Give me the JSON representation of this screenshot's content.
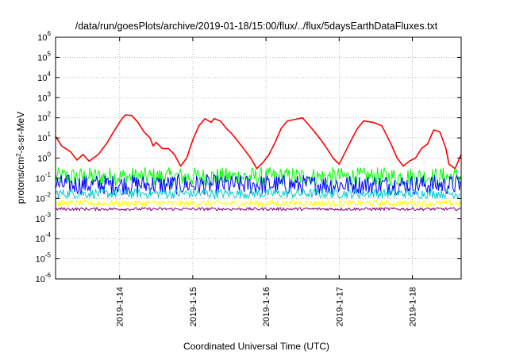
{
  "chart_data": {
    "type": "line",
    "title": "/data/run/goesPlots/archive/2019-01-18/15:00/flux/../flux/5daysEarthDataFluxes.txt",
    "xlabel": "Coordinated Universal Time (UTC)",
    "ylabel": {
      "prefix": "protons/cm",
      "sup": "2",
      "suffix": "-s-sr-MeV"
    },
    "yscale": "log",
    "ylim": [
      1e-06,
      1000000.0
    ],
    "y_ticks": [
      {
        "value": 1e-06,
        "base": "10",
        "exp": "-6"
      },
      {
        "value": 1e-05,
        "base": "10",
        "exp": "-5"
      },
      {
        "value": 0.0001,
        "base": "10",
        "exp": "-4"
      },
      {
        "value": 0.001,
        "base": "10",
        "exp": "-3"
      },
      {
        "value": 0.01,
        "base": "10",
        "exp": "-2"
      },
      {
        "value": 0.1,
        "base": "10",
        "exp": "-1"
      },
      {
        "value": 1.0,
        "base": "10",
        "exp": "0"
      },
      {
        "value": 10.0,
        "base": "10",
        "exp": "1"
      },
      {
        "value": 100.0,
        "base": "10",
        "exp": "2"
      },
      {
        "value": 1000.0,
        "base": "10",
        "exp": "3"
      },
      {
        "value": 10000.0,
        "base": "10",
        "exp": "4"
      },
      {
        "value": 100000.0,
        "base": "10",
        "exp": "5"
      },
      {
        "value": 1000000.0,
        "base": "10",
        "exp": "6"
      }
    ],
    "xlim": [
      "2019-01-13 03:00",
      "2019-01-18 16:00"
    ],
    "x_ticks": [
      "2019-1-14",
      "2019-1-15",
      "2019-1-16",
      "2019-1-17",
      "2019-1-18"
    ],
    "grid": true,
    "series": [
      {
        "color": "#ff0000",
        "x": [
          "2019-01-13 03:00",
          "2019-01-13 05:00",
          "2019-01-13 08:00",
          "2019-01-13 10:00",
          "2019-01-13 12:00",
          "2019-01-13 14:00",
          "2019-01-13 17:00",
          "2019-01-13 20:00",
          "2019-01-13 22:00",
          "2019-01-14 00:00",
          "2019-01-14 01:00",
          "2019-01-14 02:00",
          "2019-01-14 04:00",
          "2019-01-14 06:00",
          "2019-01-14 08:00",
          "2019-01-14 10:00",
          "2019-01-14 11:00",
          "2019-01-14 12:00",
          "2019-01-14 14:00",
          "2019-01-14 16:00",
          "2019-01-14 18:00",
          "2019-01-14 20:00",
          "2019-01-14 22:00",
          "2019-01-15 00:00",
          "2019-01-15 02:00",
          "2019-01-15 04:00",
          "2019-01-15 06:00",
          "2019-01-15 07:00",
          "2019-01-15 09:00",
          "2019-01-15 11:00",
          "2019-01-15 13:00",
          "2019-01-15 16:00",
          "2019-01-15 19:00",
          "2019-01-15 21:00",
          "2019-01-15 23:00",
          "2019-01-16 01:00",
          "2019-01-16 03:00",
          "2019-01-16 05:00",
          "2019-01-16 07:00",
          "2019-01-16 09:00",
          "2019-01-16 12:00",
          "2019-01-16 15:00",
          "2019-01-16 18:00",
          "2019-01-16 20:00",
          "2019-01-16 22:00",
          "2019-01-17 00:00",
          "2019-01-17 02:00",
          "2019-01-17 04:00",
          "2019-01-17 06:00",
          "2019-01-17 08:00",
          "2019-01-17 11:00",
          "2019-01-17 14:00",
          "2019-01-17 17:00",
          "2019-01-17 19:00",
          "2019-01-17 21:00",
          "2019-01-17 23:00",
          "2019-01-18 01:00",
          "2019-01-18 03:00",
          "2019-01-18 05:00",
          "2019-01-18 07:00",
          "2019-01-18 09:00",
          "2019-01-18 10:00",
          "2019-01-18 11:00",
          "2019-01-18 12:00",
          "2019-01-18 14:00",
          "2019-01-18 16:00"
        ],
        "y": [
          12,
          4,
          2,
          0.8,
          1.5,
          0.7,
          1.5,
          6,
          20,
          60,
          100,
          140,
          130,
          60,
          20,
          10,
          4,
          6,
          3,
          3,
          1.5,
          0.4,
          1,
          8,
          40,
          90,
          60,
          90,
          70,
          30,
          15,
          4,
          1,
          0.3,
          0.6,
          1.5,
          6,
          30,
          70,
          80,
          100,
          30,
          8,
          3,
          1,
          0.5,
          2,
          8,
          30,
          70,
          60,
          40,
          5,
          1,
          0.4,
          0.7,
          1,
          3,
          5,
          25,
          20,
          8,
          3,
          0.5,
          0.3,
          1.5
        ]
      }
    ],
    "noise_bands": [
      {
        "color": "#00ff00",
        "y_low": 0.04,
        "y_high": 0.35
      },
      {
        "color": "#0000ff",
        "y_low": 0.015,
        "y_high": 0.15
      },
      {
        "color": "#00ced1",
        "y_low": 0.01,
        "y_high": 0.03
      },
      {
        "color": "#ffff00",
        "y_low": 0.004,
        "y_high": 0.008
      },
      {
        "color": "#800080",
        "y_low": 0.0025,
        "y_high": 0.0035
      }
    ]
  }
}
